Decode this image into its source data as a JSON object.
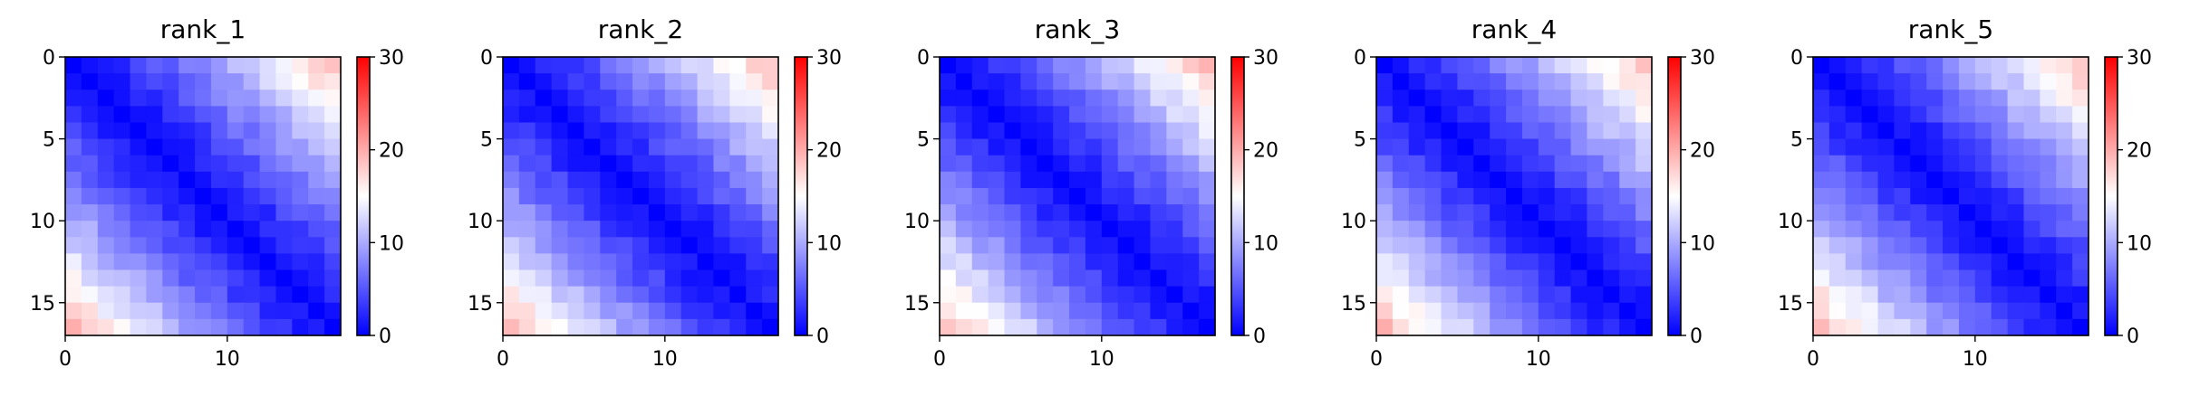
{
  "figure": {
    "domain": "heatmaps of pairwise distances"
  },
  "chart_data": [
    {
      "type": "heatmap",
      "title": "rank_1",
      "size": 17,
      "seed": 11,
      "colormap": "bwr",
      "vmin": 0,
      "vmax": 30,
      "x_ticks": [
        0,
        10
      ],
      "y_ticks": [
        0,
        5,
        10,
        15
      ],
      "colorbar_ticks": [
        0,
        10,
        20,
        30
      ],
      "colorbar_tick_labels": [
        "0",
        "10",
        "20",
        "30"
      ]
    },
    {
      "type": "heatmap",
      "title": "rank_2",
      "size": 17,
      "seed": 22,
      "colormap": "bwr",
      "vmin": 0,
      "vmax": 30,
      "x_ticks": [
        0,
        10
      ],
      "y_ticks": [
        0,
        5,
        10,
        15
      ],
      "colorbar_ticks": [
        0,
        10,
        20,
        30
      ],
      "colorbar_tick_labels": [
        "0",
        "10",
        "20",
        "30"
      ]
    },
    {
      "type": "heatmap",
      "title": "rank_3",
      "size": 17,
      "seed": 33,
      "colormap": "bwr",
      "vmin": 0,
      "vmax": 30,
      "x_ticks": [
        0,
        10
      ],
      "y_ticks": [
        0,
        5,
        10,
        15
      ],
      "colorbar_ticks": [
        0,
        10,
        20,
        30
      ],
      "colorbar_tick_labels": [
        "0",
        "10",
        "20",
        "30"
      ]
    },
    {
      "type": "heatmap",
      "title": "rank_4",
      "size": 17,
      "seed": 44,
      "colormap": "bwr",
      "vmin": 0,
      "vmax": 30,
      "x_ticks": [
        0,
        10
      ],
      "y_ticks": [
        0,
        5,
        10,
        15
      ],
      "colorbar_ticks": [
        0,
        10,
        20,
        30
      ],
      "colorbar_tick_labels": [
        "0",
        "10",
        "20",
        "30"
      ]
    },
    {
      "type": "heatmap",
      "title": "rank_5",
      "size": 17,
      "seed": 55,
      "colormap": "bwr",
      "vmin": 0,
      "vmax": 30,
      "x_ticks": [
        0,
        10
      ],
      "y_ticks": [
        0,
        5,
        10,
        15
      ],
      "colorbar_ticks": [
        0,
        10,
        20,
        30
      ],
      "colorbar_tick_labels": [
        "0",
        "10",
        "20",
        "30"
      ]
    }
  ]
}
